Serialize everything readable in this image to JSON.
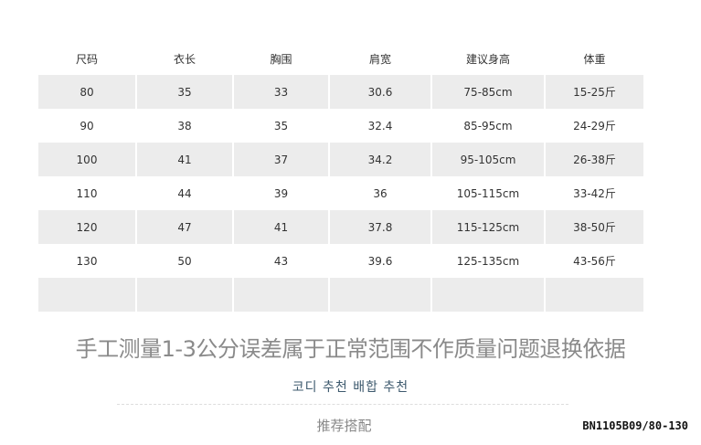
{
  "table": {
    "headers": [
      "尺码",
      "衣长",
      "胸围",
      "肩宽",
      "建议身高",
      "体重"
    ],
    "rows": [
      [
        "80",
        "35",
        "33",
        "30.6",
        "75-85cm",
        "15-25斤"
      ],
      [
        "90",
        "38",
        "35",
        "32.4",
        "85-95cm",
        "24-29斤"
      ],
      [
        "100",
        "41",
        "37",
        "34.2",
        "95-105cm",
        "26-38斤"
      ],
      [
        "110",
        "44",
        "39",
        "36",
        "105-115cm",
        "33-42斤"
      ],
      [
        "120",
        "47",
        "41",
        "37.8",
        "115-125cm",
        "38-50斤"
      ],
      [
        "130",
        "50",
        "43",
        "39.6",
        "125-135cm",
        "43-56斤"
      ],
      [
        "",
        "",
        "",
        "",
        "",
        ""
      ]
    ]
  },
  "note": "手工测量1-3公分误差属于正常范围不作质量问题退换依据",
  "korean_heading": "코디 추천 배합 추천",
  "recommend_heading": "推荐搭配",
  "product_code": "BN1105B09/80-130",
  "colors": {
    "row_shade": "#ececec",
    "korean_text": "#3e5a6e"
  }
}
